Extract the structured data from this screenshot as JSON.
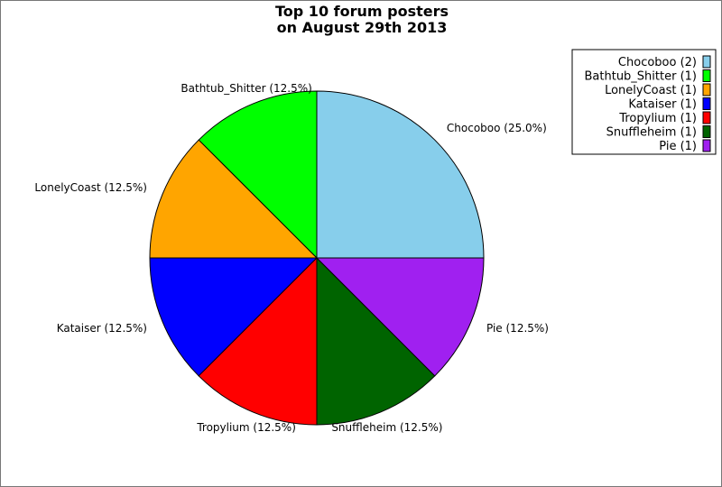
{
  "chart_data": {
    "type": "pie",
    "title": [
      "Top 10 forum posters",
      "on August 29th 2013"
    ],
    "categories": [
      "Chocoboo",
      "Bathtub_Shitter",
      "LonelyCoast",
      "Kataiser",
      "Tropylium",
      "Snuffleheim",
      "Pie"
    ],
    "values": [
      2,
      1,
      1,
      1,
      1,
      1,
      1
    ],
    "slice_labels": [
      "Chocoboo (25.0%)",
      "Bathtub_Shitter (12.5%)",
      "LonelyCoast (12.5%)",
      "Kataiser (12.5%)",
      "Tropylium (12.5%)",
      "Snuffleheim (12.5%)",
      "Pie (12.5%)"
    ],
    "legend_labels": [
      "Chocoboo (2)",
      "Bathtub_Shitter (1)",
      "LonelyCoast (1)",
      "Kataiser (1)",
      "Tropylium (1)",
      "Snuffleheim (1)",
      "Pie (1)"
    ],
    "colors": [
      "#87ceeb",
      "#00ff00",
      "#ffa500",
      "#0000ff",
      "#ff0000",
      "#006400",
      "#a020f0"
    ],
    "start_angle_deg": 0,
    "direction": "counterclockwise",
    "legend_placement": "top-right"
  }
}
